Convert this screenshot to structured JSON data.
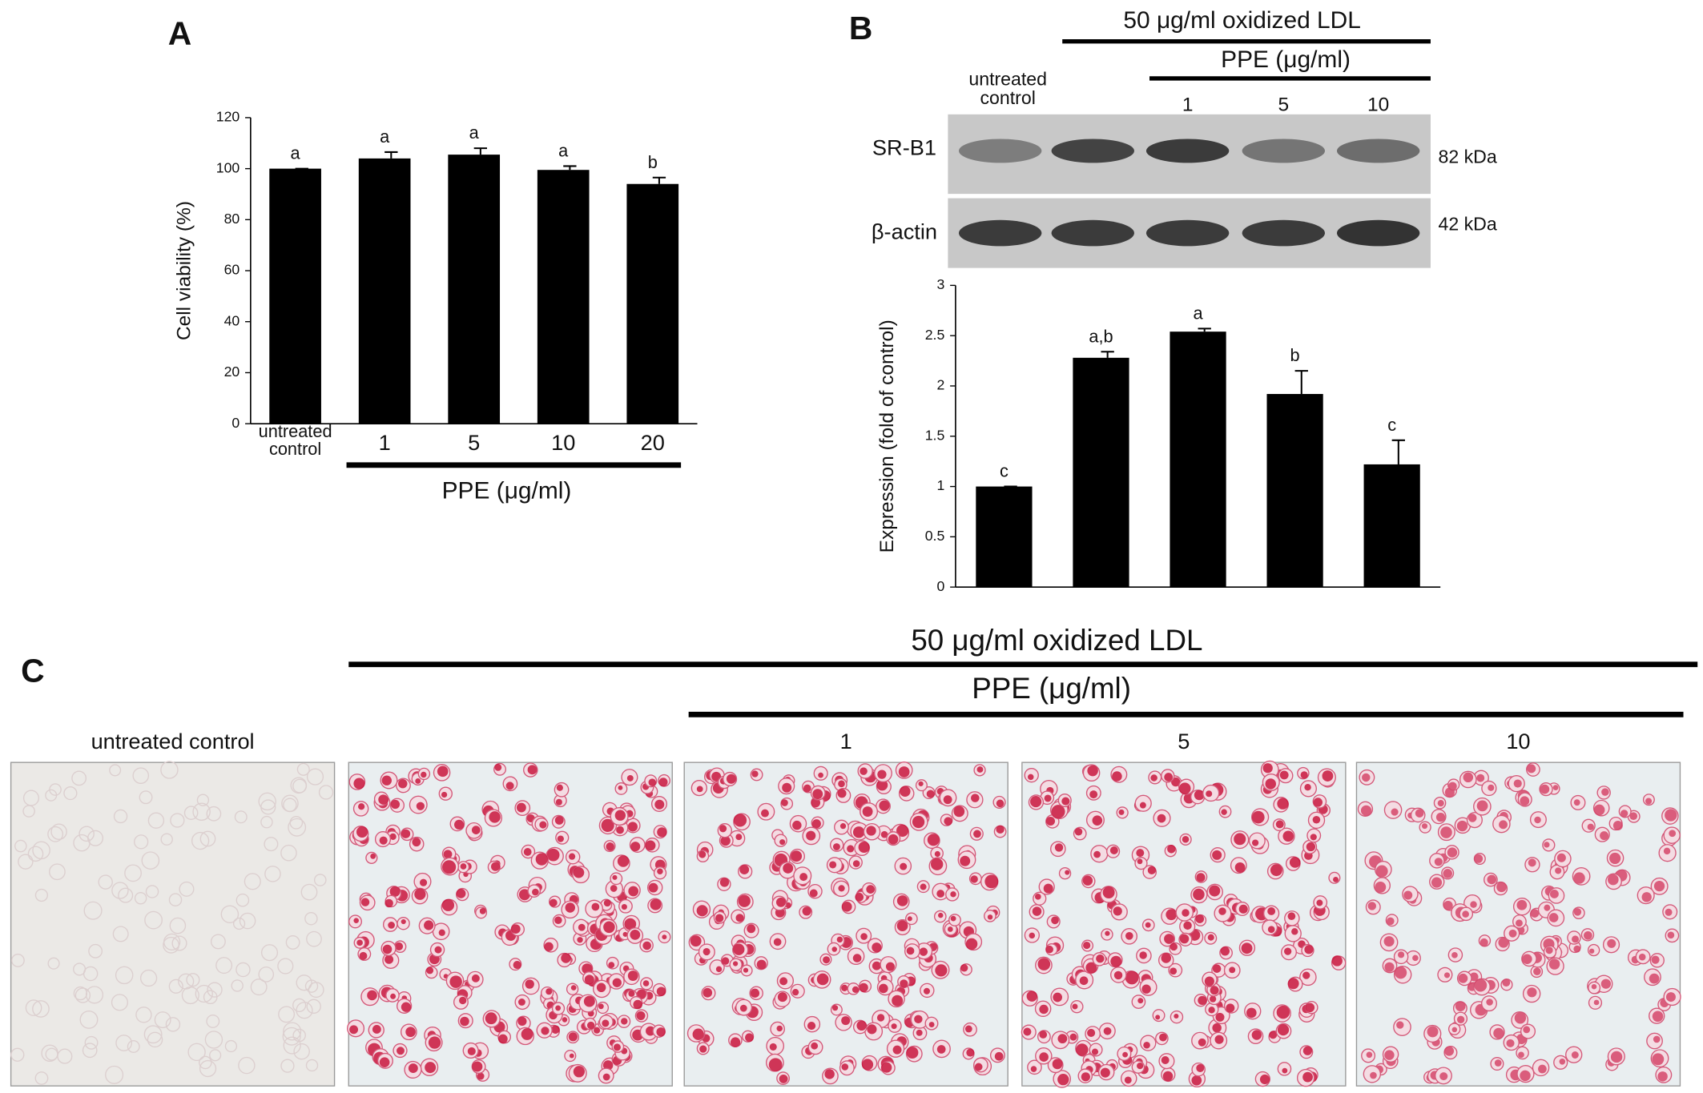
{
  "chart_data": [
    {
      "type": "bar",
      "panel": "A",
      "ylabel": "Cell viability (%)",
      "categories": [
        "untreated control",
        "1",
        "5",
        "10",
        "20"
      ],
      "values": [
        100,
        104,
        105.5,
        99.5,
        94
      ],
      "errors": [
        0,
        2.5,
        2.5,
        1.5,
        2.5
      ],
      "annotations": [
        "a",
        "a",
        "a",
        "a",
        "b"
      ],
      "group_label": "PPE (μg/ml)",
      "color": "#000000",
      "ylim": [
        0,
        120
      ],
      "yticks": [
        0,
        20,
        40,
        60,
        80,
        100,
        120
      ]
    },
    {
      "type": "bar",
      "ylabel": "Expression (fold of control)",
      "categories": [
        null,
        null,
        null,
        null,
        null
      ],
      "values": [
        1,
        2.28,
        2.54,
        1.92,
        1.22
      ],
      "errors": [
        0,
        0.06,
        0.03,
        0.23,
        0.24
      ],
      "annotations": [
        "c",
        "a,b",
        "a",
        "b",
        "c"
      ],
      "color": "#000000",
      "ylim": [
        0,
        3
      ],
      "yticks": [
        0,
        0.5,
        1,
        1.5,
        2,
        2.5,
        3
      ]
    }
  ],
  "blot": {
    "panel": "B",
    "treatment": "50 μg/ml oxidized LDL",
    "dose": "PPE (μg/ml)",
    "lanes": [
      "untreated control",
      null,
      "1",
      "5",
      "10"
    ],
    "rows": [
      {
        "label": "SR-B1",
        "size": "82 kDa"
      },
      {
        "label": "β-actin",
        "size": "42 kDa"
      }
    ]
  },
  "staining": {
    "panel": "C",
    "treatment": "50 μg/ml oxidized LDL",
    "dose": "PPE (μg/ml)",
    "images": [
      "untreated control",
      null,
      "1",
      "5",
      "10"
    ]
  }
}
